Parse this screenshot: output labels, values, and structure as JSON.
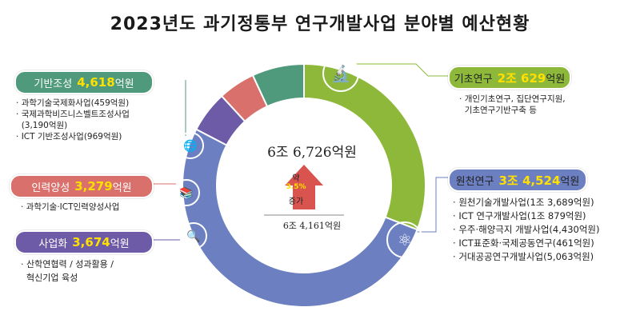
{
  "title": "2023년도 과기정통부 연구개발사업 분야별 예산현황",
  "center": {
    "total": "6조 6,726억원",
    "increase_label_top": "약",
    "increase_pct": "3.5%",
    "increase_label_bottom": "증가",
    "previous_total": "6조 4,161억원"
  },
  "categories": {
    "basic": {
      "name": "기초연구",
      "amount": "2조 629",
      "unit": "억원",
      "items": [
        "개인기초연구, 집단연구지원,",
        "기초연구기반구축 등"
      ]
    },
    "source": {
      "name": "원천연구",
      "amount": "3조 4,524",
      "unit": "억원",
      "items": [
        "원천기술개발사업(1조 3,689억원)",
        "ICT 연구개발사업(1조 879억원)",
        "우주·해양극지 개발사업(4,430억원)",
        "ICT표준화·국제공동연구(461억원)",
        "거대공공연구개발사업(5,063억원)"
      ]
    },
    "infra": {
      "name": "기반조성",
      "amount": "4,618",
      "unit": "억원",
      "items": [
        "과학기술국제화사업(459억원)",
        "국제과학비즈니스벨트조성사업",
        "(3,190억원)",
        "ICT 기반조성사업(969억원)"
      ]
    },
    "talent": {
      "name": "인력양성",
      "amount": "3,279",
      "unit": "억원",
      "items": [
        "과학기술·ICT인력양성사업"
      ]
    },
    "commercial": {
      "name": "사업화",
      "amount": "3,674",
      "unit": "억원",
      "items": [
        "산학연협력 / 성과활용 /",
        "혁신기업 육성"
      ]
    }
  },
  "colors": {
    "basic": "#8db83a",
    "source": "#6b7fc1",
    "infra": "#4f9a7c",
    "talent": "#d9706b",
    "commercial": "#6e5ba8",
    "arrow": "#d9534f"
  },
  "chart_data": {
    "type": "pie",
    "donut": true,
    "title": "2023년도 과기정통부 연구개발사업 분야별 예산현황",
    "unit": "억원",
    "categories": [
      "기초연구",
      "원천연구",
      "사업화",
      "인력양성",
      "기반조성"
    ],
    "values": [
      20629,
      34524,
      3674,
      3279,
      4618
    ],
    "colors": [
      "#8db83a",
      "#6b7fc1",
      "#6e5ba8",
      "#d9706b",
      "#4f9a7c"
    ],
    "total": 66726,
    "previous_total": 64161,
    "growth_pct": 3.5
  }
}
